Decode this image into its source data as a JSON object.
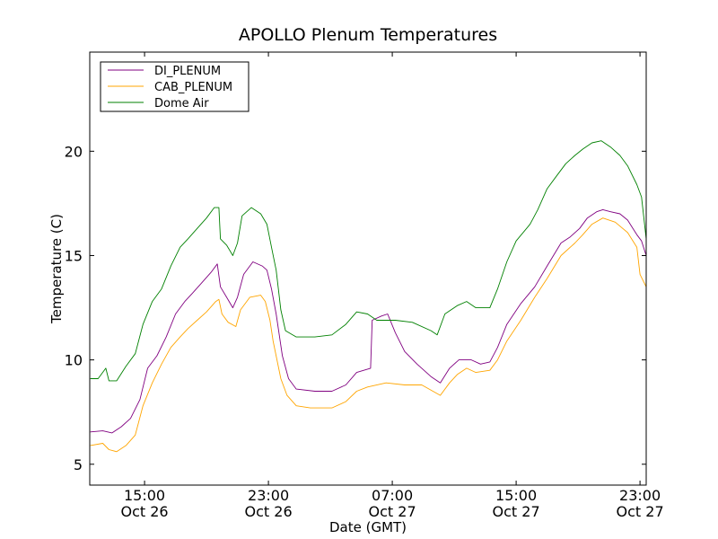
{
  "chart_data": {
    "type": "line",
    "title": "APOLLO Plenum Temperatures",
    "xlabel": "Date (GMT)",
    "ylabel": "Temperature (C)",
    "x_units": "hours since Oct 26 00:00 GMT",
    "xlim": [
      11.46,
      47.4
    ],
    "ylim": [
      4,
      24.75
    ],
    "grid": false,
    "legend_position": "top-left",
    "yticks": [
      {
        "value": 5,
        "label": "5"
      },
      {
        "value": 10,
        "label": "10"
      },
      {
        "value": 15,
        "label": "15"
      },
      {
        "value": 20,
        "label": "20"
      }
    ],
    "xticks": [
      {
        "value": 15,
        "time": "15:00",
        "date": "Oct 26"
      },
      {
        "value": 23,
        "time": "23:00",
        "date": "Oct 26"
      },
      {
        "value": 31,
        "time": "07:00",
        "date": "Oct 27"
      },
      {
        "value": 39,
        "time": "15:00",
        "date": "Oct 27"
      },
      {
        "value": 47,
        "time": "23:00",
        "date": "Oct 27"
      }
    ],
    "series": [
      {
        "name": "DI_PLENUM",
        "color": "#800080",
        "x": [
          11.5,
          12.3,
          12.9,
          13.5,
          14.1,
          14.7,
          15.2,
          15.8,
          16.4,
          17.0,
          17.6,
          18.1,
          18.7,
          19.3,
          19.7,
          19.9,
          20.3,
          20.7,
          21.0,
          21.4,
          22.0,
          22.6,
          22.9,
          23.2,
          23.5,
          23.9,
          24.3,
          24.8,
          26.0,
          27.1,
          28.0,
          28.7,
          29.6,
          29.7,
          30.3,
          30.7,
          31.2,
          31.8,
          32.6,
          33.5,
          34.1,
          34.7,
          35.3,
          36.1,
          36.7,
          37.3,
          37.8,
          38.4,
          39.3,
          40.2,
          41.0,
          41.9,
          42.5,
          43.1,
          43.6,
          44.2,
          44.6,
          45.1,
          45.7,
          46.2,
          46.8,
          47.1,
          47.4
        ],
        "y": [
          6.55,
          6.6,
          6.5,
          6.8,
          7.2,
          8.1,
          9.6,
          10.2,
          11.1,
          12.2,
          12.8,
          13.2,
          13.7,
          14.2,
          14.6,
          13.5,
          13.0,
          12.5,
          13.0,
          14.1,
          14.7,
          14.5,
          14.3,
          13.4,
          12.2,
          10.2,
          9.1,
          8.6,
          8.5,
          8.5,
          8.8,
          9.4,
          9.6,
          11.9,
          12.1,
          12.2,
          11.3,
          10.4,
          9.8,
          9.2,
          8.9,
          9.6,
          10.0,
          10.0,
          9.8,
          9.9,
          10.6,
          11.7,
          12.7,
          13.5,
          14.5,
          15.6,
          15.9,
          16.3,
          16.8,
          17.1,
          17.2,
          17.1,
          17.0,
          16.7,
          16.0,
          15.7,
          15.0
        ]
      },
      {
        "name": "CAB_PLENUM",
        "color": "#ffa500",
        "x": [
          11.5,
          12.3,
          12.7,
          13.2,
          13.8,
          14.4,
          14.9,
          15.5,
          16.1,
          16.7,
          17.3,
          17.8,
          18.4,
          19.0,
          19.6,
          19.8,
          20.0,
          20.4,
          20.9,
          21.2,
          21.8,
          22.5,
          22.8,
          23.1,
          23.3,
          23.8,
          24.2,
          24.8,
          25.7,
          27.1,
          28.0,
          28.7,
          29.4,
          30.6,
          31.8,
          32.9,
          34.1,
          34.7,
          35.2,
          35.8,
          36.4,
          37.3,
          37.8,
          38.4,
          39.3,
          40.2,
          41.0,
          41.9,
          42.8,
          43.3,
          43.9,
          44.6,
          45.4,
          46.2,
          46.8,
          47.0,
          47.4
        ],
        "y": [
          5.9,
          6.0,
          5.7,
          5.6,
          5.9,
          6.4,
          7.8,
          8.9,
          9.8,
          10.6,
          11.1,
          11.5,
          11.9,
          12.3,
          12.8,
          12.9,
          12.2,
          11.8,
          11.6,
          12.4,
          13.0,
          13.1,
          12.8,
          11.9,
          10.9,
          9.1,
          8.3,
          7.8,
          7.7,
          7.7,
          8.0,
          8.5,
          8.7,
          8.9,
          8.8,
          8.8,
          8.3,
          8.9,
          9.3,
          9.6,
          9.4,
          9.5,
          10.0,
          10.9,
          11.9,
          13.0,
          13.9,
          15.0,
          15.6,
          16.0,
          16.5,
          16.8,
          16.6,
          16.1,
          15.4,
          14.1,
          13.5
        ]
      },
      {
        "name": "Dome Air",
        "color": "#008000",
        "x": [
          11.5,
          12.0,
          12.5,
          12.7,
          13.2,
          13.8,
          14.4,
          14.9,
          15.5,
          16.1,
          16.7,
          17.3,
          17.8,
          18.4,
          19.0,
          19.5,
          19.8,
          19.9,
          20.3,
          20.7,
          21.0,
          21.3,
          21.9,
          22.5,
          22.9,
          23.2,
          23.5,
          23.8,
          24.1,
          24.8,
          26.0,
          27.1,
          28.0,
          28.7,
          29.4,
          30.0,
          31.2,
          32.3,
          33.5,
          33.9,
          34.4,
          35.2,
          35.8,
          36.4,
          37.3,
          37.8,
          38.4,
          39.0,
          39.9,
          40.4,
          41.0,
          41.6,
          42.2,
          42.8,
          43.3,
          43.9,
          44.5,
          45.1,
          45.7,
          46.2,
          46.8,
          47.1,
          47.4
        ],
        "y": [
          9.1,
          9.1,
          9.6,
          9.0,
          9.0,
          9.7,
          10.3,
          11.7,
          12.8,
          13.4,
          14.5,
          15.4,
          15.8,
          16.3,
          16.8,
          17.3,
          17.3,
          15.8,
          15.5,
          15.0,
          15.6,
          16.9,
          17.3,
          17.0,
          16.5,
          15.4,
          14.3,
          12.4,
          11.4,
          11.1,
          11.1,
          11.2,
          11.7,
          12.3,
          12.2,
          11.9,
          11.9,
          11.8,
          11.4,
          11.2,
          12.2,
          12.6,
          12.8,
          12.5,
          12.5,
          13.4,
          14.7,
          15.7,
          16.5,
          17.2,
          18.2,
          18.8,
          19.4,
          19.8,
          20.1,
          20.4,
          20.5,
          20.2,
          19.8,
          19.3,
          18.4,
          17.8,
          15.8
        ]
      }
    ]
  }
}
